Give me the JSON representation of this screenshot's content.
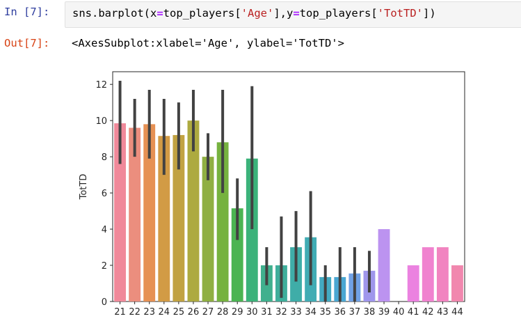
{
  "cell": {
    "in_prompt": "In [7]:",
    "code": {
      "t1": "sns.barplot(x",
      "eq1": "=",
      "t2": "top_players[",
      "s1": "'Age'",
      "t3": "],y",
      "eq2": "=",
      "t4": "top_players[",
      "s2": "'TotTD'",
      "t5": "])"
    },
    "out_prompt": "Out[7]:",
    "out_text": "<AxesSubplot:xlabel='Age', ylabel='TotTD'>"
  },
  "chart_data": {
    "type": "bar",
    "title": "",
    "xlabel": "",
    "ylabel": "TotTD",
    "ylim": [
      0,
      12.7
    ],
    "yticks": [
      0,
      2,
      4,
      6,
      8,
      10,
      12
    ],
    "categories": [
      "21",
      "22",
      "23",
      "24",
      "25",
      "26",
      "27",
      "28",
      "29",
      "30",
      "31",
      "32",
      "33",
      "34",
      "35",
      "36",
      "37",
      "38",
      "39",
      "40",
      "41",
      "42",
      "43",
      "44"
    ],
    "values": [
      9.85,
      9.6,
      9.8,
      9.15,
      9.2,
      10.0,
      8.0,
      8.8,
      5.15,
      7.9,
      2.0,
      2.0,
      3.0,
      3.55,
      1.35,
      1.35,
      1.55,
      1.7,
      4.0,
      0,
      2.0,
      3.0,
      3.0,
      2.0
    ],
    "error_low": [
      7.6,
      8.0,
      7.9,
      7.0,
      7.3,
      8.3,
      6.7,
      6.0,
      3.4,
      4.0,
      0.9,
      0.2,
      1.1,
      0.9,
      0.0,
      0.0,
      0.0,
      0.5,
      null,
      null,
      null,
      null,
      null,
      null
    ],
    "error_high": [
      12.2,
      11.2,
      11.7,
      11.2,
      11.0,
      11.7,
      9.3,
      11.7,
      6.8,
      11.9,
      3.0,
      4.7,
      5.0,
      6.1,
      2.0,
      3.0,
      3.0,
      2.8,
      null,
      null,
      null,
      null,
      null,
      null
    ],
    "colors": [
      "#f0899a",
      "#eb8e7e",
      "#e69154",
      "#d29b45",
      "#c1a242",
      "#adaa40",
      "#8faf42",
      "#76b23f",
      "#4bb452",
      "#3bb27a",
      "#40b08e",
      "#3fae9b",
      "#3fada8",
      "#41acb4",
      "#43aac2",
      "#4aa7d2",
      "#70a1e5",
      "#9f96ec",
      "#bc93f0",
      "#d888ef",
      "#eb82e0",
      "#f082cf",
      "#f184c0",
      "#f187ae"
    ],
    "error_color": "#424242"
  }
}
